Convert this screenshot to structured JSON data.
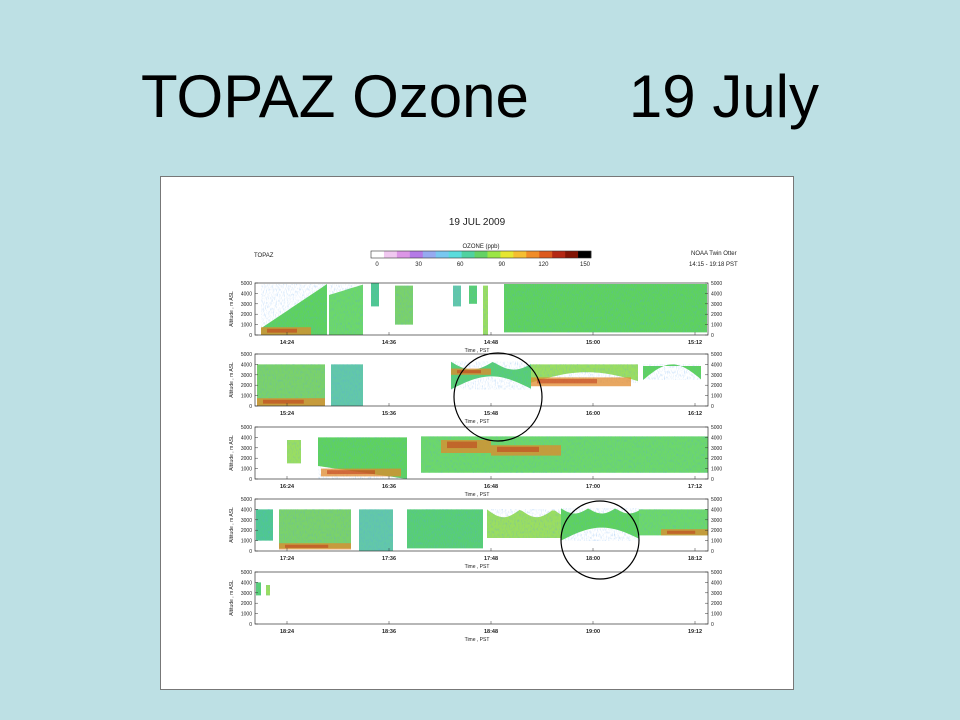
{
  "slide": {
    "title": "TOPAZ Ozone      19 July"
  },
  "figure": {
    "date_title": "19 JUL 2009",
    "instrument": "TOPAZ",
    "platform": "NOAA Twin Otter",
    "time_range": "14:15 - 19:18 PST"
  },
  "chart_data": {
    "type": "heatmap",
    "title": "19 JUL 2009",
    "colorbar": {
      "label": "OZONE (ppb)",
      "ticks": [
        0,
        30,
        60,
        90,
        120,
        150
      ],
      "colors": [
        "#ffffff",
        "#f0c8f0",
        "#dc96e6",
        "#b47ae6",
        "#96aaf0",
        "#78c8f0",
        "#5adcdc",
        "#50d2a0",
        "#64d264",
        "#9be646",
        "#e6e632",
        "#f5be32",
        "#f08c28",
        "#dc5a1e",
        "#b42814",
        "#821405",
        "#000000"
      ]
    },
    "ylabel": "Altitude , m ASL",
    "xlabel": "Time , PST",
    "y_ticks": [
      0,
      1000,
      2000,
      3000,
      4000,
      5000
    ],
    "panels": [
      {
        "xticks": [
          "14:24",
          "14:36",
          "14:48",
          "15:00",
          "15:12"
        ]
      },
      {
        "xticks": [
          "15:24",
          "15:36",
          "15:48",
          "16:00",
          "16:12"
        ]
      },
      {
        "xticks": [
          "16:24",
          "16:36",
          "16:48",
          "17:00",
          "17:12"
        ]
      },
      {
        "xticks": [
          "17:24",
          "17:36",
          "17:48",
          "18:00",
          "18:12"
        ]
      },
      {
        "xticks": [
          "18:24",
          "18:36",
          "18:48",
          "19:00",
          "19:12"
        ]
      }
    ]
  }
}
